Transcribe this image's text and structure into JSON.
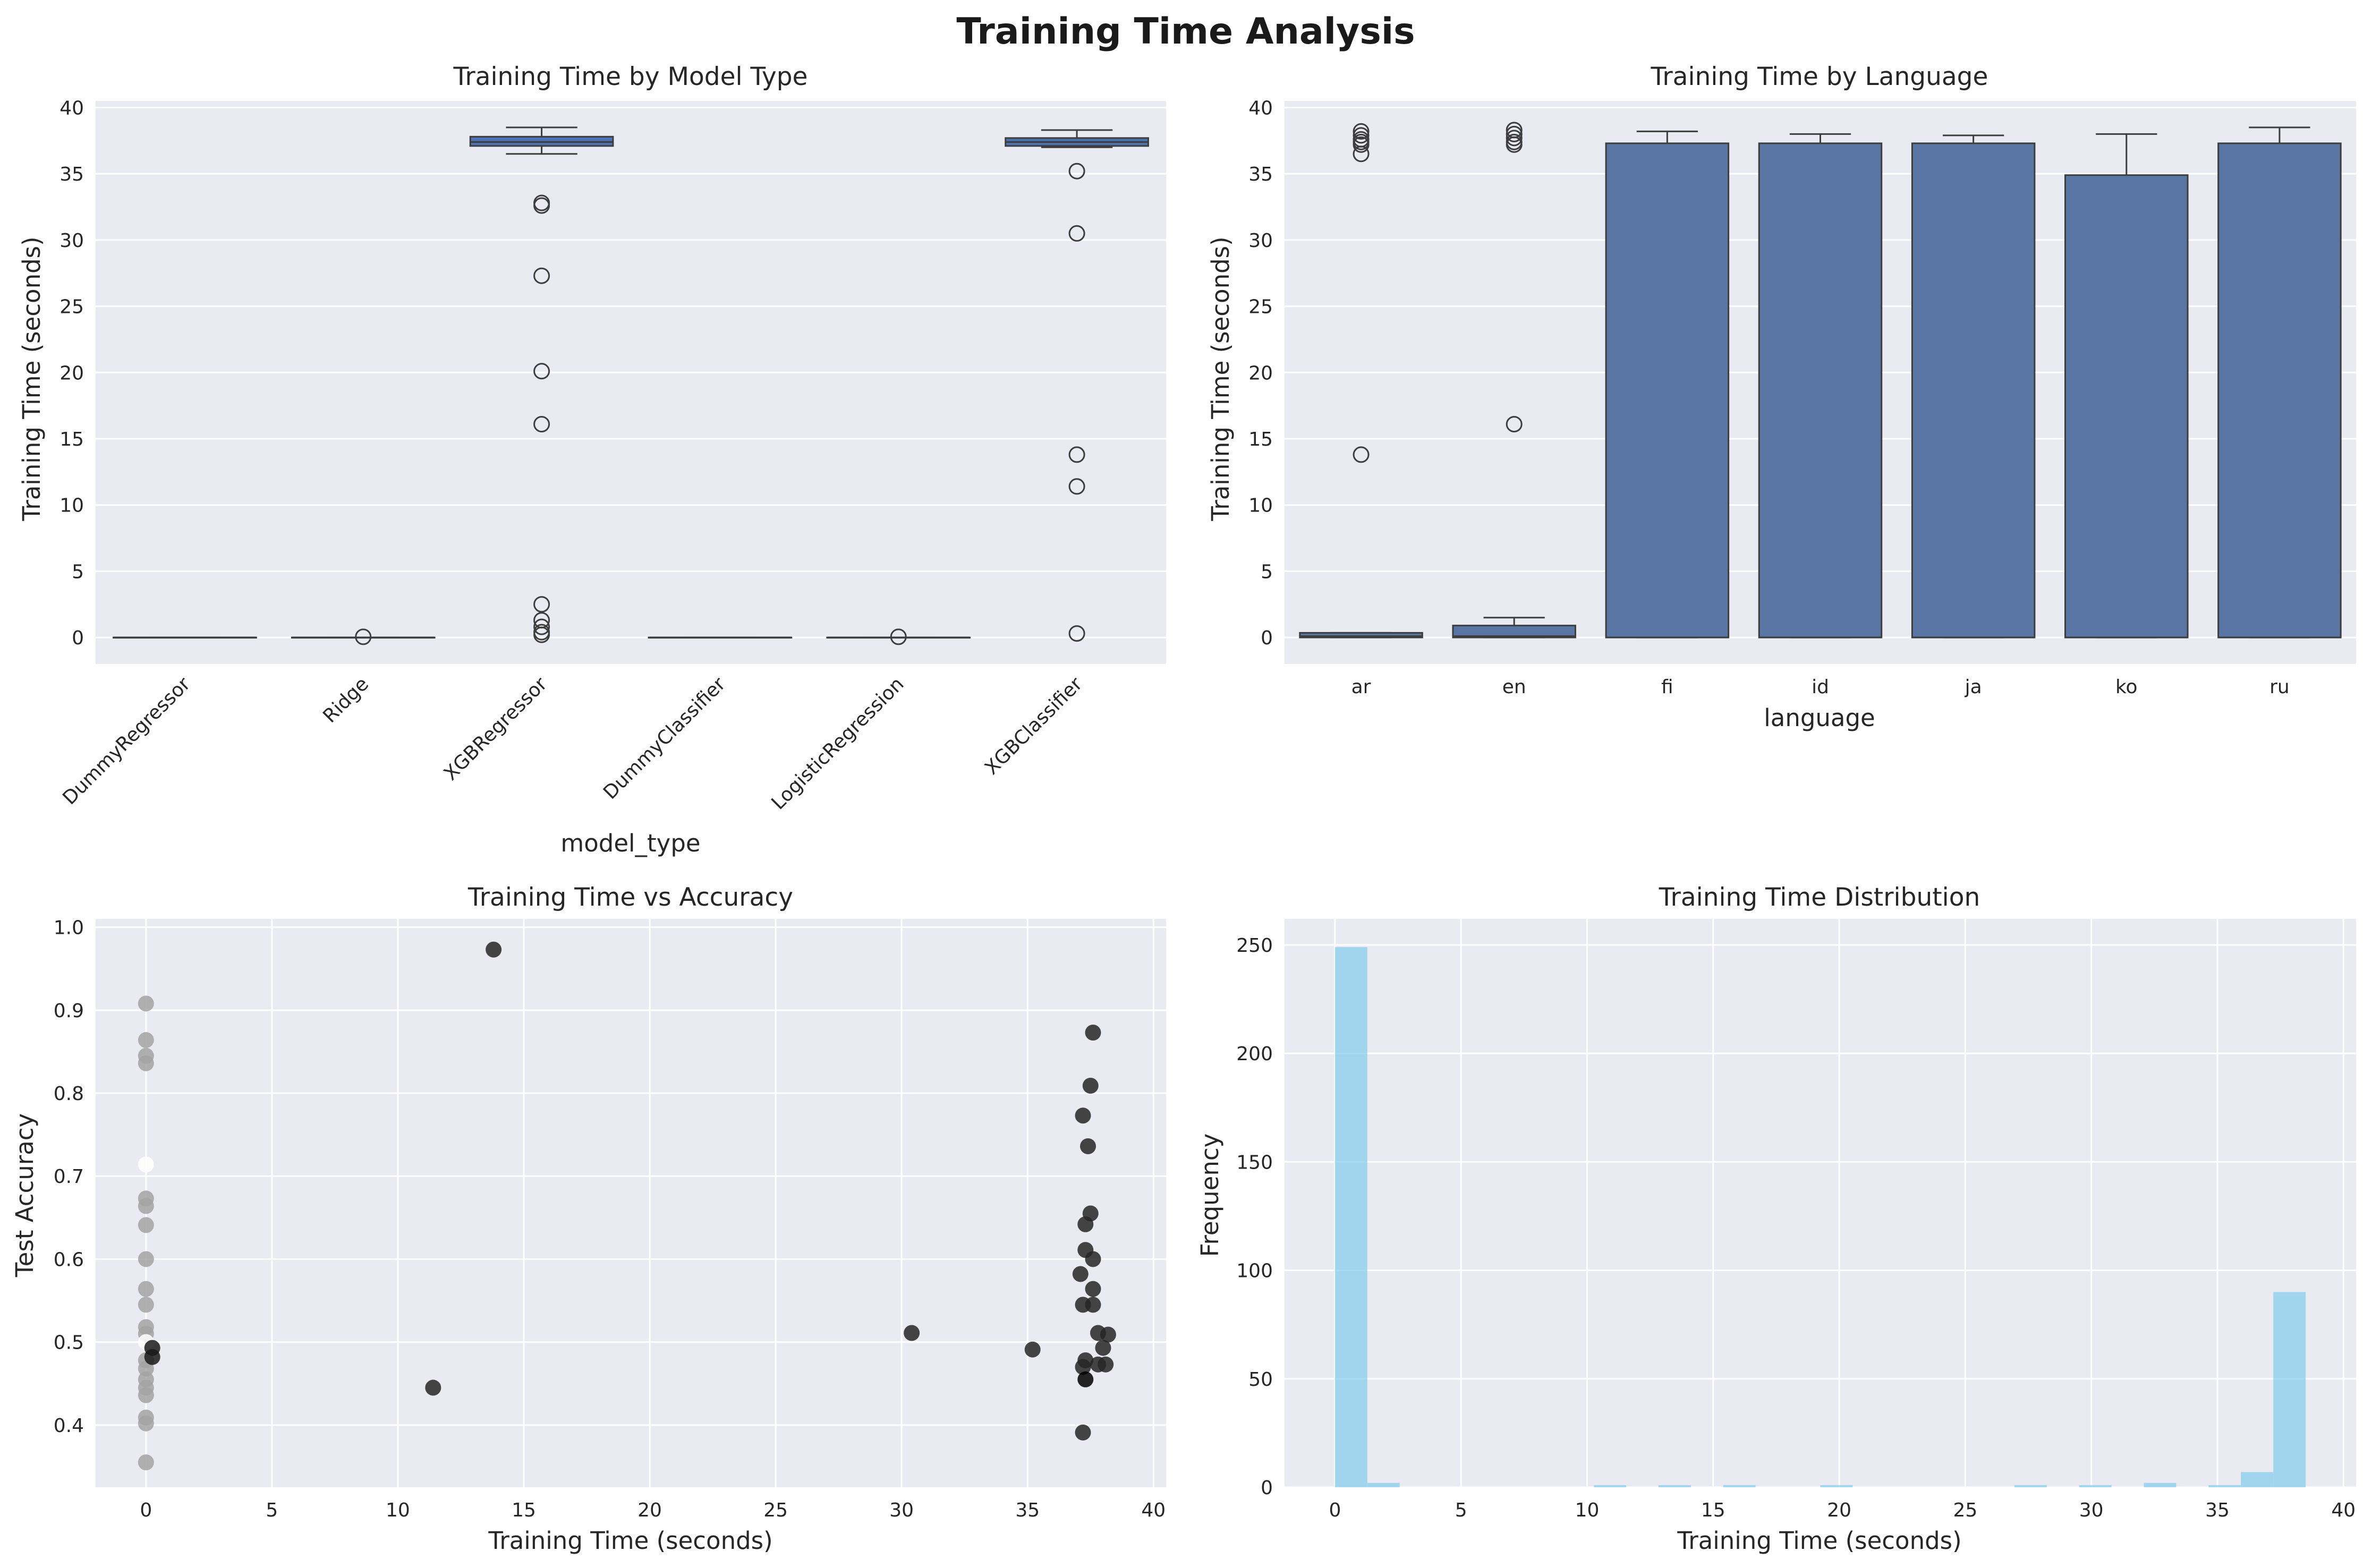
{
  "figure": {
    "title": "Training Time Analysis",
    "background": "#ffffff",
    "panel_bg": "#eaeaf2",
    "grid_color": "#ffffff"
  },
  "chart_data": [
    {
      "type": "box",
      "title": "Training Time by Model Type",
      "xlabel": "model_type",
      "ylabel": "Training Time (seconds)",
      "ylim": [
        -2,
        40.5
      ],
      "yticks": [
        0,
        5,
        10,
        15,
        20,
        25,
        30,
        35,
        40
      ],
      "categories": [
        "DummyRegressor",
        "Ridge",
        "XGBRegressor",
        "DummyClassifier",
        "LogisticRegression",
        "XGBClassifier"
      ],
      "box_color": "#4c72b0",
      "boxes": [
        {
          "q1": 0.0,
          "median": 0.0,
          "q3": 0.0,
          "whislo": 0.0,
          "whishi": 0.0,
          "fliers": []
        },
        {
          "q1": 0.0,
          "median": 0.0,
          "q3": 0.0,
          "whislo": 0.0,
          "whishi": 0.0,
          "fliers": [
            0.05
          ]
        },
        {
          "q1": 37.1,
          "median": 37.4,
          "q3": 37.8,
          "whislo": 36.5,
          "whishi": 38.5,
          "fliers": [
            32.8,
            32.6,
            27.3,
            20.1,
            16.1,
            2.5,
            1.3,
            0.8,
            0.4,
            0.2
          ]
        },
        {
          "q1": 0.0,
          "median": 0.0,
          "q3": 0.0,
          "whislo": 0.0,
          "whishi": 0.0,
          "fliers": []
        },
        {
          "q1": 0.0,
          "median": 0.0,
          "q3": 0.0,
          "whislo": 0.0,
          "whishi": 0.0,
          "fliers": [
            0.05
          ]
        },
        {
          "q1": 37.1,
          "median": 37.4,
          "q3": 37.7,
          "whislo": 37.0,
          "whishi": 38.3,
          "fliers": [
            35.2,
            30.5,
            13.8,
            11.4,
            0.3
          ]
        }
      ]
    },
    {
      "type": "box",
      "title": "Training Time by Language",
      "xlabel": "language",
      "ylabel": "Training Time (seconds)",
      "ylim": [
        -2,
        40.5
      ],
      "yticks": [
        0,
        5,
        10,
        15,
        20,
        25,
        30,
        35,
        40
      ],
      "categories": [
        "ar",
        "en",
        "fi",
        "id",
        "ja",
        "ko",
        "ru"
      ],
      "box_color": "#5875a4",
      "boxes": [
        {
          "q1": 0.0,
          "median": 0.1,
          "q3": 0.35,
          "whislo": 0.0,
          "whishi": 0.35,
          "fliers": [
            38.2,
            37.9,
            37.6,
            37.4,
            37.2,
            36.5,
            13.8
          ]
        },
        {
          "q1": 0.0,
          "median": 0.1,
          "q3": 0.9,
          "whislo": 0.0,
          "whishi": 1.5,
          "fliers": [
            38.3,
            38.0,
            37.7,
            37.4,
            37.2,
            16.1
          ]
        },
        {
          "q1": 0.0,
          "median": 0.0,
          "q3": 37.3,
          "whislo": 0.0,
          "whishi": 38.2,
          "fliers": []
        },
        {
          "q1": 0.0,
          "median": 0.0,
          "q3": 37.3,
          "whislo": 0.0,
          "whishi": 38.0,
          "fliers": []
        },
        {
          "q1": 0.0,
          "median": 0.0,
          "q3": 37.3,
          "whislo": 0.0,
          "whishi": 37.9,
          "fliers": []
        },
        {
          "q1": 0.0,
          "median": 0.0,
          "q3": 34.9,
          "whislo": 0.0,
          "whishi": 38.0,
          "fliers": []
        },
        {
          "q1": 0.0,
          "median": 0.0,
          "q3": 37.3,
          "whislo": 0.0,
          "whishi": 38.5,
          "fliers": []
        }
      ]
    },
    {
      "type": "scatter",
      "title": "Training Time vs Accuracy",
      "xlabel": "Training Time (seconds)",
      "ylabel": "Test Accuracy",
      "xlim": [
        -2,
        40.5
      ],
      "ylim": [
        0.325,
        1.01
      ],
      "xticks": [
        0,
        5,
        10,
        15,
        20,
        25,
        30,
        35,
        40
      ],
      "yticks": [
        0.4,
        0.5,
        0.6,
        0.7,
        0.8,
        0.9,
        1.0
      ],
      "points": [
        {
          "x": 0.0,
          "y": 0.908,
          "color": "#a3a3a3"
        },
        {
          "x": 0.0,
          "y": 0.864,
          "color": "#a3a3a3"
        },
        {
          "x": 0.0,
          "y": 0.845,
          "color": "#a3a3a3"
        },
        {
          "x": 0.0,
          "y": 0.836,
          "color": "#a3a3a3"
        },
        {
          "x": 0.0,
          "y": 0.714,
          "color": "#ffffff"
        },
        {
          "x": 0.0,
          "y": 0.673,
          "color": "#a3a3a3"
        },
        {
          "x": 0.0,
          "y": 0.664,
          "color": "#a3a3a3"
        },
        {
          "x": 0.0,
          "y": 0.641,
          "color": "#a3a3a3"
        },
        {
          "x": 0.0,
          "y": 0.6,
          "color": "#a3a3a3"
        },
        {
          "x": 0.0,
          "y": 0.564,
          "color": "#a3a3a3"
        },
        {
          "x": 0.0,
          "y": 0.545,
          "color": "#a3a3a3"
        },
        {
          "x": 0.0,
          "y": 0.518,
          "color": "#a3a3a3"
        },
        {
          "x": 0.0,
          "y": 0.51,
          "color": "#a3a3a3"
        },
        {
          "x": 0.0,
          "y": 0.5,
          "color": "#ffffff"
        },
        {
          "x": 0.0,
          "y": 0.478,
          "color": "#a3a3a3"
        },
        {
          "x": 0.0,
          "y": 0.468,
          "color": "#a3a3a3"
        },
        {
          "x": 0.0,
          "y": 0.455,
          "color": "#a3a3a3"
        },
        {
          "x": 0.0,
          "y": 0.445,
          "color": "#a3a3a3"
        },
        {
          "x": 0.0,
          "y": 0.436,
          "color": "#a3a3a3"
        },
        {
          "x": 0.0,
          "y": 0.409,
          "color": "#a3a3a3"
        },
        {
          "x": 0.0,
          "y": 0.402,
          "color": "#a3a3a3"
        },
        {
          "x": 0.0,
          "y": 0.355,
          "color": "#a3a3a3"
        },
        {
          "x": 0.25,
          "y": 0.493,
          "color": "#1a1a1a"
        },
        {
          "x": 0.25,
          "y": 0.482,
          "color": "#1a1a1a"
        },
        {
          "x": 11.4,
          "y": 0.445,
          "color": "#262626"
        },
        {
          "x": 13.8,
          "y": 0.973,
          "color": "#262626"
        },
        {
          "x": 30.4,
          "y": 0.511,
          "color": "#262626"
        },
        {
          "x": 35.2,
          "y": 0.491,
          "color": "#262626"
        },
        {
          "x": 37.6,
          "y": 0.873,
          "color": "#262626"
        },
        {
          "x": 37.5,
          "y": 0.809,
          "color": "#262626"
        },
        {
          "x": 37.2,
          "y": 0.773,
          "color": "#262626"
        },
        {
          "x": 37.4,
          "y": 0.736,
          "color": "#262626"
        },
        {
          "x": 37.5,
          "y": 0.655,
          "color": "#262626"
        },
        {
          "x": 37.3,
          "y": 0.642,
          "color": "#262626"
        },
        {
          "x": 37.3,
          "y": 0.611,
          "color": "#262626"
        },
        {
          "x": 37.6,
          "y": 0.6,
          "color": "#262626"
        },
        {
          "x": 37.1,
          "y": 0.582,
          "color": "#262626"
        },
        {
          "x": 37.6,
          "y": 0.564,
          "color": "#262626"
        },
        {
          "x": 37.2,
          "y": 0.545,
          "color": "#262626"
        },
        {
          "x": 37.6,
          "y": 0.545,
          "color": "#262626"
        },
        {
          "x": 37.8,
          "y": 0.511,
          "color": "#262626"
        },
        {
          "x": 38.2,
          "y": 0.509,
          "color": "#262626"
        },
        {
          "x": 38.0,
          "y": 0.493,
          "color": "#262626"
        },
        {
          "x": 37.3,
          "y": 0.478,
          "color": "#262626"
        },
        {
          "x": 37.8,
          "y": 0.473,
          "color": "#262626"
        },
        {
          "x": 38.1,
          "y": 0.473,
          "color": "#262626"
        },
        {
          "x": 37.2,
          "y": 0.47,
          "color": "#262626"
        },
        {
          "x": 37.3,
          "y": 0.455,
          "color": "#000000"
        },
        {
          "x": 37.2,
          "y": 0.391,
          "color": "#262626"
        }
      ]
    },
    {
      "type": "histogram",
      "title": "Training Time Distribution",
      "xlabel": "Training Time (seconds)",
      "ylabel": "Frequency",
      "xlim": [
        -2,
        40.5
      ],
      "ylim": [
        0,
        262
      ],
      "xticks": [
        0,
        5,
        10,
        15,
        20,
        25,
        30,
        35,
        40
      ],
      "yticks": [
        0,
        50,
        100,
        150,
        200,
        250
      ],
      "bar_color": "#87ceeb",
      "bin_width": 1.283,
      "bins": [
        {
          "x0": 0.0,
          "count": 249
        },
        {
          "x0": 1.283,
          "count": 2
        },
        {
          "x0": 10.267,
          "count": 1
        },
        {
          "x0": 12.833,
          "count": 1
        },
        {
          "x0": 15.4,
          "count": 1
        },
        {
          "x0": 19.25,
          "count": 1
        },
        {
          "x0": 26.95,
          "count": 1
        },
        {
          "x0": 29.517,
          "count": 1
        },
        {
          "x0": 32.083,
          "count": 2
        },
        {
          "x0": 34.65,
          "count": 1
        },
        {
          "x0": 35.933,
          "count": 7
        },
        {
          "x0": 37.217,
          "count": 90
        }
      ]
    }
  ]
}
